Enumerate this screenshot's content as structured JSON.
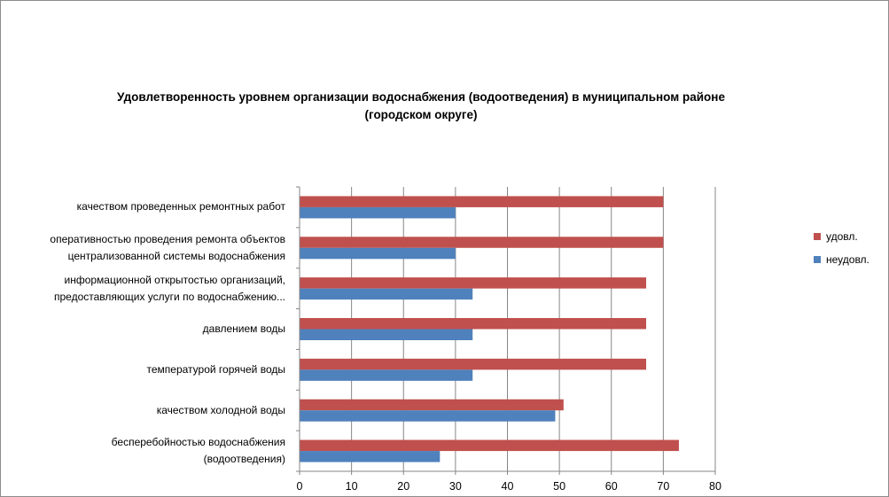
{
  "title": {
    "line1": "Удовлетворенность уровнем организации водоснабжения (водоотведения) в муниципальном районе",
    "line2": "(городском округе)"
  },
  "legend": {
    "items": [
      {
        "label": "удовл.",
        "color": "#C0504D"
      },
      {
        "label": "неудовл.",
        "color": "#4F81BD"
      }
    ],
    "placement": "right"
  },
  "chart_data": {
    "type": "bar",
    "orientation": "horizontal",
    "categories": [
      {
        "lines": [
          "качеством проведенных ремонтных работ"
        ]
      },
      {
        "lines": [
          "оперативностью проведения ремонта объектов",
          "централизованной системы водоснабжения"
        ]
      },
      {
        "lines": [
          "информационной открытостью организаций,",
          "предоставляющих услуги по водоснабжению..."
        ]
      },
      {
        "lines": [
          "давлением воды"
        ]
      },
      {
        "lines": [
          "температурой горячей воды"
        ]
      },
      {
        "lines": [
          "качеством холодной воды"
        ]
      },
      {
        "lines": [
          "бесперебойностью водоснабжения",
          "(водоотведения)"
        ]
      }
    ],
    "series": [
      {
        "name": "удовл.",
        "color": "#C0504D",
        "values": [
          70,
          70,
          66.7,
          66.7,
          66.7,
          50.8,
          73
        ]
      },
      {
        "name": "неудовл.",
        "color": "#4F81BD",
        "values": [
          30,
          30,
          33.3,
          33.3,
          33.3,
          49.2,
          27
        ]
      }
    ],
    "xlim": [
      0,
      80
    ],
    "xticks": [
      "0",
      "10",
      "20",
      "30",
      "40",
      "50",
      "60",
      "70",
      "80"
    ],
    "grid": true
  }
}
